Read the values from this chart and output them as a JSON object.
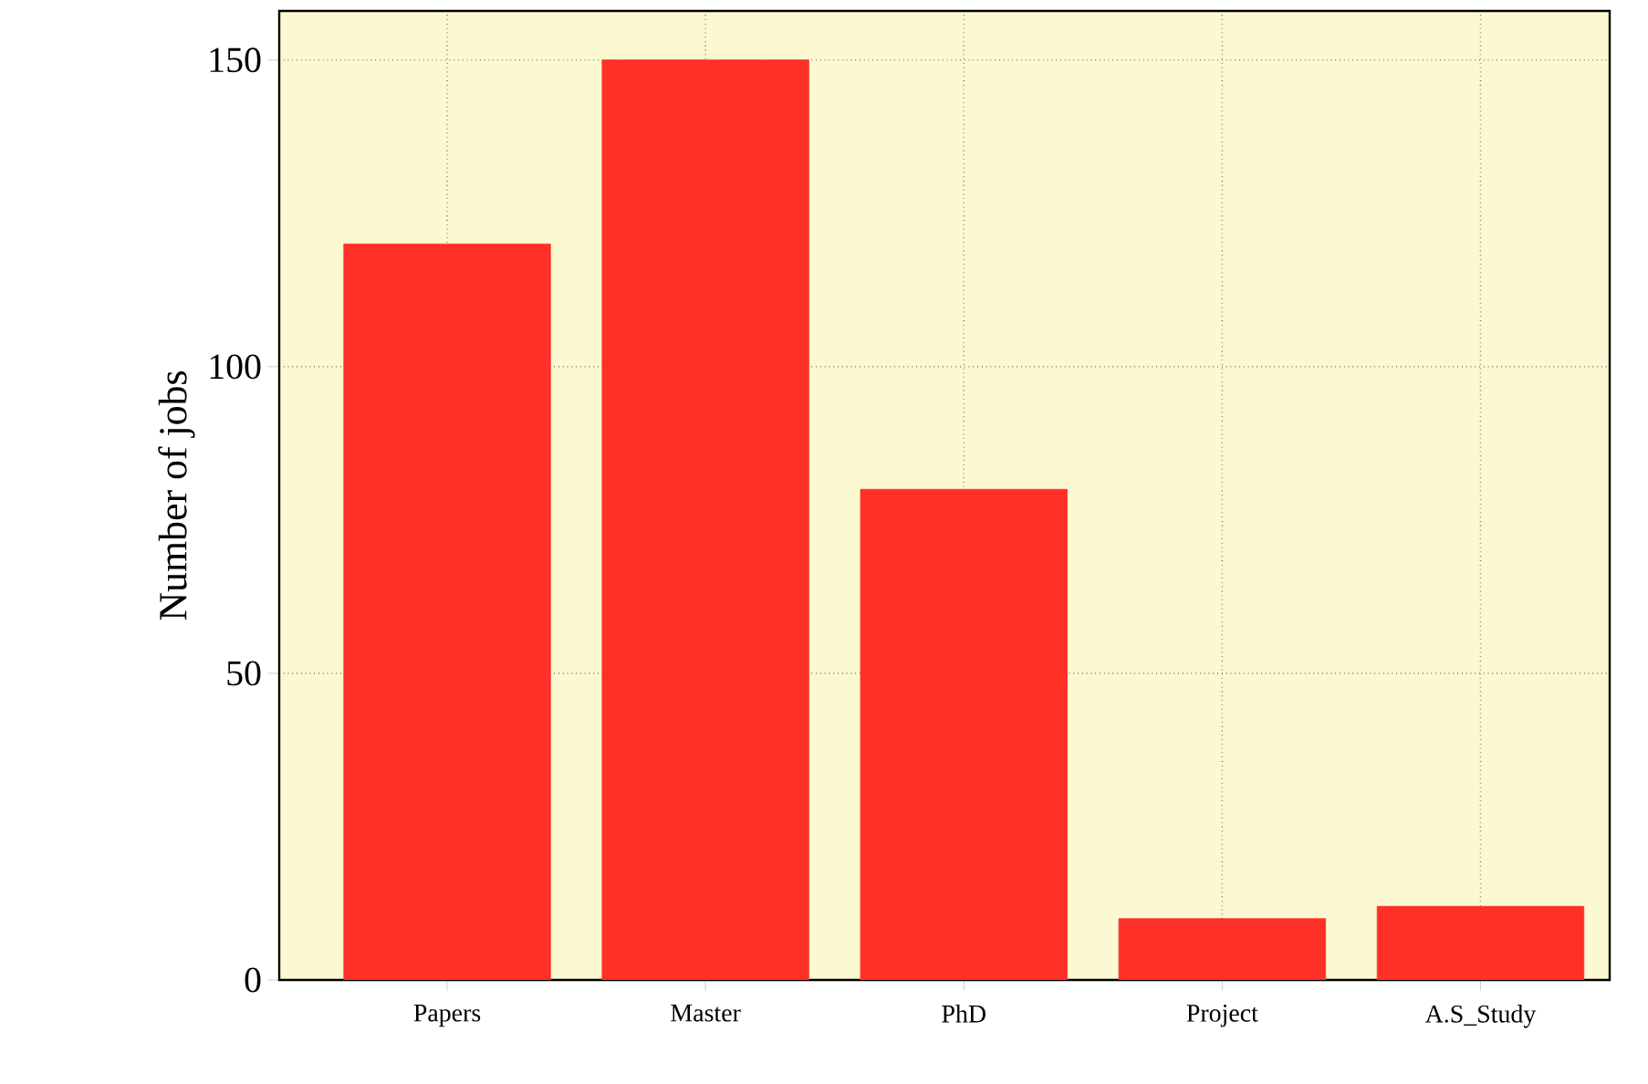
{
  "chart_data": {
    "type": "bar",
    "ylabel": "Number of jobs",
    "categories": [
      "Papers",
      "Master",
      "PhD",
      "Project",
      "A.S_Study"
    ],
    "values": [
      120,
      150,
      80,
      10,
      12
    ],
    "color": "#ff3028",
    "ylim": [
      0,
      158
    ],
    "yticks": [
      0,
      50,
      100,
      150
    ],
    "grid": true
  }
}
